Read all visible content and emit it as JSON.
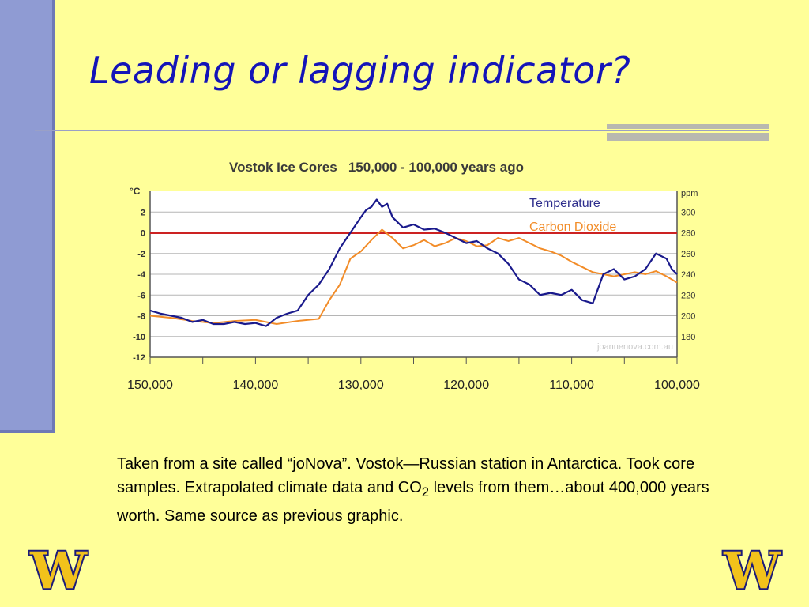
{
  "slide": {
    "title": "Leading or lagging indicator?",
    "caption": {
      "part1": "Taken from a site called “joNova”.  Vostok—Russian station in Antarctica.  Took core samples.  Extrapolated climate data and CO",
      "subscript": "2",
      "part2": " levels from them…about 400,000 years worth.  Same source as previous graphic."
    },
    "logo_letter": "W"
  },
  "colors": {
    "background": "#ffff99",
    "title": "#1414b8",
    "temperature": "#1a1a8c",
    "co2": "#f28c28",
    "zero_line": "#cc2222"
  },
  "chart_data": {
    "type": "line",
    "title": "Vostok Ice Cores   150,000 - 100,000 years ago",
    "y_left_label": "°C",
    "y_right_label": "ppm",
    "x_ticks": [
      "150,000",
      "140,000",
      "130,000",
      "120,000",
      "110,000",
      "100,000"
    ],
    "y_left_ticks": [
      "2",
      "0",
      "-2",
      "-4",
      "-6",
      "-8",
      "-10",
      "-12"
    ],
    "y_right_ticks": [
      "300",
      "280",
      "260",
      "240",
      "220",
      "200",
      "180"
    ],
    "xlim": [
      150000,
      100000
    ],
    "ylim_left": [
      -12,
      4
    ],
    "ylim_right": [
      160,
      320
    ],
    "grid": true,
    "reference_line": {
      "axis": "left",
      "value": 0
    },
    "legend_position": "top-right",
    "watermark": "joannenova.com.au",
    "series": [
      {
        "name": "Temperature",
        "axis": "left",
        "x": [
          150000,
          149000,
          148000,
          147000,
          146000,
          145000,
          144000,
          143000,
          142000,
          141000,
          140000,
          139000,
          138000,
          137000,
          136000,
          135000,
          134000,
          133000,
          132000,
          131000,
          130000,
          129500,
          129000,
          128500,
          128000,
          127500,
          127000,
          126000,
          125000,
          124000,
          123000,
          122000,
          121000,
          120000,
          119000,
          118000,
          117000,
          116000,
          115000,
          114000,
          113000,
          112000,
          111000,
          110000,
          109000,
          108000,
          107000,
          106000,
          105000,
          104000,
          103000,
          102000,
          101000,
          100500,
          100000
        ],
        "y": [
          -7.5,
          -7.8,
          -8.0,
          -8.2,
          -8.6,
          -8.4,
          -8.8,
          -8.8,
          -8.6,
          -8.8,
          -8.7,
          -9.0,
          -8.2,
          -7.8,
          -7.5,
          -6.0,
          -5.0,
          -3.5,
          -1.5,
          0.0,
          1.5,
          2.2,
          2.5,
          3.2,
          2.5,
          2.8,
          1.5,
          0.5,
          0.8,
          0.3,
          0.4,
          0.0,
          -0.5,
          -1.0,
          -0.8,
          -1.5,
          -2.0,
          -3.0,
          -4.5,
          -5.0,
          -6.0,
          -5.8,
          -6.0,
          -5.5,
          -6.5,
          -6.8,
          -4.0,
          -3.5,
          -4.5,
          -4.2,
          -3.5,
          -2.0,
          -2.5,
          -3.5,
          -4.0
        ]
      },
      {
        "name": "Carbon Dioxide",
        "axis": "right",
        "x": [
          150000,
          148000,
          146000,
          144000,
          142000,
          140000,
          138000,
          136000,
          134000,
          133000,
          132000,
          131000,
          130000,
          129000,
          128000,
          127000,
          126000,
          125000,
          124000,
          123000,
          122000,
          121000,
          120000,
          119000,
          118000,
          117000,
          116000,
          115000,
          114000,
          113000,
          112000,
          111000,
          110000,
          109000,
          108000,
          107000,
          106000,
          105000,
          104000,
          103000,
          102000,
          101000,
          100000
        ],
        "y": [
          200,
          198,
          195,
          193,
          195,
          196,
          192,
          195,
          197,
          215,
          230,
          255,
          262,
          273,
          283,
          275,
          265,
          268,
          273,
          267,
          270,
          275,
          272,
          267,
          268,
          275,
          272,
          275,
          270,
          265,
          262,
          258,
          252,
          247,
          242,
          240,
          238,
          240,
          242,
          240,
          243,
          238,
          232
        ]
      }
    ]
  }
}
